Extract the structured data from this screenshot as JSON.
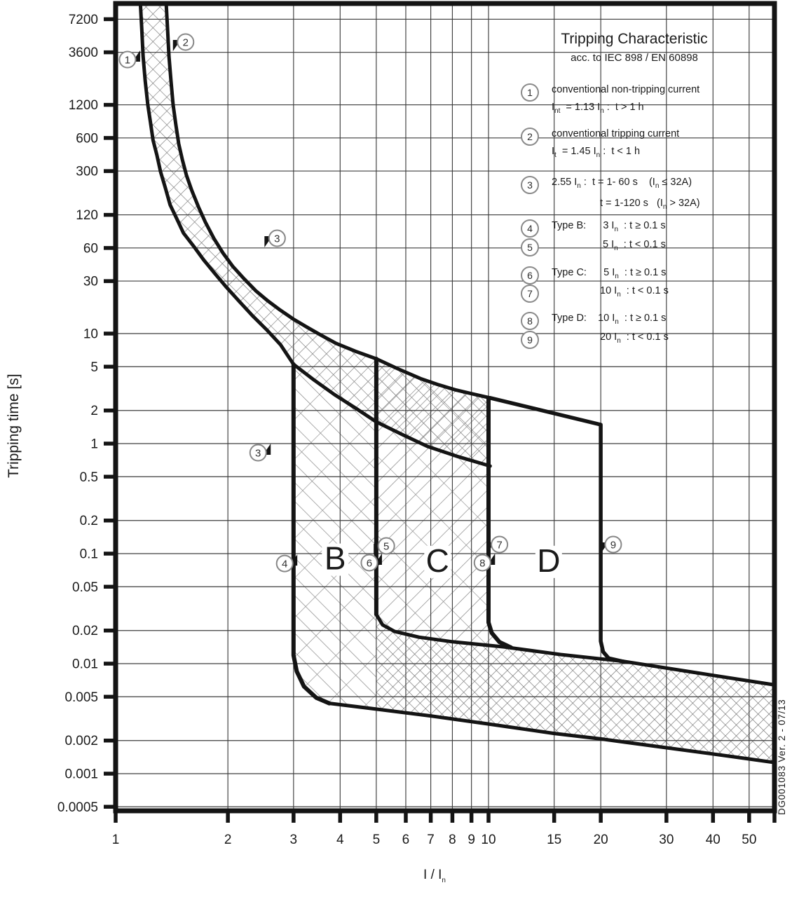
{
  "colors": {
    "ink": "#141414",
    "hatch_gray": "#878787",
    "grid": "#3d3d3d"
  },
  "doc_note": "DG001083 Ver. 2 - 07/13",
  "axes": {
    "x_title": "I / I~n~",
    "y_title": "Tripping time [s]",
    "x_ticks": [
      {
        "v": 1,
        "label": "1"
      },
      {
        "v": 2,
        "label": "2"
      },
      {
        "v": 3,
        "label": "3"
      },
      {
        "v": 4,
        "label": "4"
      },
      {
        "v": 5,
        "label": "5"
      },
      {
        "v": 6,
        "label": "6"
      },
      {
        "v": 7,
        "label": "7"
      },
      {
        "v": 8,
        "label": "8"
      },
      {
        "v": 9,
        "label": "9"
      },
      {
        "v": 10,
        "label": "10"
      },
      {
        "v": 15,
        "label": "15"
      },
      {
        "v": 20,
        "label": "20"
      },
      {
        "v": 30,
        "label": "30"
      },
      {
        "v": 40,
        "label": "40"
      },
      {
        "v": 50,
        "label": "50"
      }
    ],
    "y_ticks": [
      {
        "v": 7200,
        "label": "7200"
      },
      {
        "v": 3600,
        "label": "3600"
      },
      {
        "v": 1200,
        "label": "1200"
      },
      {
        "v": 600,
        "label": "600"
      },
      {
        "v": 300,
        "label": "300"
      },
      {
        "v": 120,
        "label": "120"
      },
      {
        "v": 60,
        "label": "60"
      },
      {
        "v": 30,
        "label": "30"
      },
      {
        "v": 10,
        "label": "10"
      },
      {
        "v": 5,
        "label": "5"
      },
      {
        "v": 2,
        "label": "2"
      },
      {
        "v": 1,
        "label": "1"
      },
      {
        "v": 0.5,
        "label": "0.5"
      },
      {
        "v": 0.2,
        "label": "0.2"
      },
      {
        "v": 0.1,
        "label": "0.1"
      },
      {
        "v": 0.05,
        "label": "0.05"
      },
      {
        "v": 0.02,
        "label": "0.02"
      },
      {
        "v": 0.01,
        "label": "0.01"
      },
      {
        "v": 0.005,
        "label": "0.005"
      },
      {
        "v": 0.002,
        "label": "0.002"
      },
      {
        "v": 0.001,
        "label": "0.001"
      },
      {
        "v": 0.0005,
        "label": "0.0005"
      }
    ]
  },
  "legend": {
    "title": "Tripping Characteristic",
    "subtitle": "acc. to IEC 898 / EN 60898",
    "lines": [
      {
        "num": "1",
        "text": "conventional non-tripping current"
      },
      {
        "text": "I~nt~  = 1.13 I~n~ :  t > 1 h"
      },
      {
        "num": "2",
        "text": "conventional tripping current"
      },
      {
        "text": "I~t~  = 1.45 I~n~ :  t < 1 h"
      },
      {
        "num": "3",
        "text": "2.55 I~n~ :  t = 1- 60 s    (I~n~ ≤ 32A)"
      },
      {
        "col2": true,
        "text": "t = 1-120 s   (I~n~ > 32A)"
      },
      {
        "num": "4",
        "text": "Type B:      3 I~n~  : t ≥ 0.1 s"
      },
      {
        "num": "5",
        "col2": true,
        "text": " 5 I~n~  : t < 0.1 s"
      },
      {
        "num": "6",
        "text": "Type C:      5 I~n~  : t ≥ 0.1 s"
      },
      {
        "num": "7",
        "col2": true,
        "text": "10 I~n~  : t < 0.1 s"
      },
      {
        "num": "8",
        "text": "Type D:    10 I~n~  : t ≥ 0.1 s"
      },
      {
        "num": "9",
        "col2": true,
        "text": "20 I~n~  : t < 0.1 s"
      }
    ]
  },
  "chart_data": {
    "type": "line",
    "title": "Tripping Characteristic",
    "subtitle": "acc. to IEC 898 / EN 60898",
    "xlabel": "I / In",
    "ylabel": "Tripping time [s]",
    "x_scale": "log",
    "y_scale": "log",
    "xlim": [
      1,
      58.6
    ],
    "ylim": [
      0.00046,
      10000
    ],
    "grid": true,
    "series": [
      {
        "id": "thermal_non_tripping_limit",
        "name": "conventional non-tripping limit (1.13 In)",
        "points": [
          [
            1.165,
            10000
          ],
          [
            1.175,
            5800
          ],
          [
            1.185,
            3300
          ],
          [
            1.2,
            2000
          ],
          [
            1.22,
            1200
          ],
          [
            1.24,
            830
          ],
          [
            1.26,
            570
          ],
          [
            1.29,
            420
          ],
          [
            1.32,
            295
          ],
          [
            1.36,
            210
          ],
          [
            1.4,
            148
          ],
          [
            1.46,
            110
          ],
          [
            1.52,
            82
          ],
          [
            1.62,
            62
          ],
          [
            1.72,
            47
          ],
          [
            1.84,
            35.5
          ],
          [
            1.97,
            27
          ],
          [
            2.14,
            19.8
          ],
          [
            2.33,
            14.5
          ],
          [
            2.55,
            10.7
          ],
          [
            2.77,
            7.9
          ],
          [
            3.0,
            5.25
          ],
          [
            3.4,
            3.8
          ],
          [
            3.86,
            2.79
          ],
          [
            4.4,
            2.1
          ],
          [
            5.0,
            1.576
          ],
          [
            5.9,
            1.2
          ],
          [
            6.86,
            0.943
          ],
          [
            8.3,
            0.76
          ],
          [
            10.1,
            0.625
          ]
        ]
      },
      {
        "id": "thermal_tripping_limit",
        "name": "conventional tripping limit (1.45 In)",
        "points": [
          [
            1.366,
            10000
          ],
          [
            1.378,
            5800
          ],
          [
            1.39,
            3300
          ],
          [
            1.407,
            2000
          ],
          [
            1.426,
            1200
          ],
          [
            1.45,
            800
          ],
          [
            1.476,
            530
          ],
          [
            1.51,
            380
          ],
          [
            1.548,
            275
          ],
          [
            1.6,
            200
          ],
          [
            1.667,
            142
          ],
          [
            1.74,
            103
          ],
          [
            1.833,
            73.6
          ],
          [
            1.94,
            54
          ],
          [
            2.06,
            40.9
          ],
          [
            2.21,
            31.5
          ],
          [
            2.375,
            24.5
          ],
          [
            2.56,
            19.8
          ],
          [
            2.766,
            16.3
          ],
          [
            3.0,
            13.5
          ],
          [
            3.28,
            11.3
          ],
          [
            3.57,
            9.6
          ],
          [
            3.9,
            8.15
          ],
          [
            4.4,
            6.9
          ],
          [
            5.0,
            5.9
          ],
          [
            5.7,
            4.8
          ],
          [
            6.57,
            3.9
          ],
          [
            7.3,
            3.45
          ],
          [
            8.15,
            3.08
          ],
          [
            9.1,
            2.82
          ],
          [
            10.1,
            2.6
          ]
        ]
      },
      {
        "id": "type_b_min",
        "name": "Type B magnetic threshold (3 In)",
        "points": [
          [
            3,
            5.25
          ],
          [
            3,
            0.0119
          ],
          [
            3.06,
            0.0085
          ],
          [
            3.2,
            0.0062
          ],
          [
            3.45,
            0.0049
          ],
          [
            3.74,
            0.00436
          ]
        ]
      },
      {
        "id": "type_c_min",
        "name": "Type C magnetic threshold (5 In)",
        "points": [
          [
            5,
            5.9
          ],
          [
            5,
            0.028
          ]
        ]
      },
      {
        "id": "cd_boundary",
        "name": "Type C max / Type D min (10 In)",
        "points": [
          [
            10,
            2.6
          ],
          [
            10,
            0.0237
          ],
          [
            10.2,
            0.019
          ],
          [
            10.7,
            0.0157
          ],
          [
            11.5,
            0.014
          ]
        ]
      },
      {
        "id": "type_d_boundary",
        "name": "Type D boundary (20 In)",
        "points": [
          [
            10.1,
            2.6
          ],
          [
            20,
            1.486
          ],
          [
            20,
            0.016
          ],
          [
            20.3,
            0.0128
          ],
          [
            21,
            0.0112
          ],
          [
            23.1,
            0.0104
          ]
        ]
      },
      {
        "id": "magnetic_band_top",
        "name": "instantaneous trip band upper limit",
        "points": [
          [
            5,
            0.028
          ],
          [
            5.2,
            0.0225
          ],
          [
            5.6,
            0.0196
          ],
          [
            6.5,
            0.0174
          ],
          [
            8,
            0.0158
          ],
          [
            11,
            0.0142
          ],
          [
            15.6,
            0.0121
          ],
          [
            23,
            0.0105
          ],
          [
            35,
            0.0084
          ],
          [
            58.6,
            0.0064
          ]
        ]
      },
      {
        "id": "magnetic_band_bottom",
        "name": "instantaneous trip band lower limit",
        "points": [
          [
            3.74,
            0.00436
          ],
          [
            5,
            0.00386
          ],
          [
            7,
            0.00335
          ],
          [
            10,
            0.00283
          ],
          [
            15,
            0.00232
          ],
          [
            20,
            0.00207
          ],
          [
            30,
            0.00172
          ],
          [
            45,
            0.00143
          ],
          [
            58.6,
            0.00126
          ]
        ]
      }
    ],
    "regions": [
      {
        "name": "thermal_band",
        "hatch": "cross-wide",
        "points": [
          [
            1.165,
            10000
          ],
          [
            1.175,
            5800
          ],
          [
            1.185,
            3300
          ],
          [
            1.2,
            2000
          ],
          [
            1.22,
            1200
          ],
          [
            1.24,
            830
          ],
          [
            1.26,
            570
          ],
          [
            1.29,
            420
          ],
          [
            1.32,
            295
          ],
          [
            1.36,
            210
          ],
          [
            1.4,
            148
          ],
          [
            1.46,
            110
          ],
          [
            1.52,
            82
          ],
          [
            1.62,
            62
          ],
          [
            1.72,
            47
          ],
          [
            1.84,
            35.5
          ],
          [
            1.97,
            27
          ],
          [
            2.14,
            19.8
          ],
          [
            2.33,
            14.5
          ],
          [
            2.55,
            10.7
          ],
          [
            2.77,
            7.9
          ],
          [
            3.0,
            5.25
          ],
          [
            3.4,
            3.8
          ],
          [
            3.86,
            2.79
          ],
          [
            4.4,
            2.1
          ],
          [
            5.0,
            1.576
          ],
          [
            5.9,
            1.2
          ],
          [
            6.86,
            0.943
          ],
          [
            8.3,
            0.76
          ],
          [
            10.1,
            0.625
          ],
          [
            10.1,
            2.6
          ],
          [
            9.1,
            2.82
          ],
          [
            8.15,
            3.08
          ],
          [
            7.3,
            3.45
          ],
          [
            6.57,
            3.9
          ],
          [
            5.7,
            4.8
          ],
          [
            5.0,
            5.9
          ],
          [
            4.4,
            6.9
          ],
          [
            3.9,
            8.15
          ],
          [
            3.57,
            9.6
          ],
          [
            3.28,
            11.3
          ],
          [
            3.0,
            13.5
          ],
          [
            2.766,
            16.3
          ],
          [
            2.56,
            19.8
          ],
          [
            2.375,
            24.5
          ],
          [
            2.21,
            31.5
          ],
          [
            2.06,
            40.9
          ],
          [
            1.94,
            54
          ],
          [
            1.833,
            73.6
          ],
          [
            1.74,
            103
          ],
          [
            1.667,
            142
          ],
          [
            1.6,
            200
          ],
          [
            1.548,
            275
          ],
          [
            1.51,
            380
          ],
          [
            1.476,
            530
          ],
          [
            1.45,
            800
          ],
          [
            1.426,
            1200
          ],
          [
            1.407,
            2000
          ],
          [
            1.39,
            3300
          ],
          [
            1.378,
            5800
          ],
          [
            1.366,
            10000
          ]
        ]
      },
      {
        "name": "type_b",
        "hatch": "fwd-mixed",
        "points": [
          [
            3,
            5.25
          ],
          [
            3.4,
            3.8
          ],
          [
            3.86,
            2.79
          ],
          [
            4.4,
            2.1
          ],
          [
            5,
            1.576
          ],
          [
            5,
            0.00386
          ],
          [
            3.74,
            0.00436
          ],
          [
            3.45,
            0.0049
          ],
          [
            3.2,
            0.0062
          ],
          [
            3.06,
            0.0085
          ],
          [
            3,
            0.0119
          ]
        ]
      },
      {
        "name": "type_c",
        "hatch": "back-mixed",
        "points": [
          [
            5,
            5.9
          ],
          [
            5.7,
            4.8
          ],
          [
            6.57,
            3.9
          ],
          [
            7.3,
            3.45
          ],
          [
            8.15,
            3.08
          ],
          [
            9.1,
            2.82
          ],
          [
            10.1,
            2.6
          ],
          [
            10,
            0.0237
          ],
          [
            10.2,
            0.019
          ],
          [
            10.7,
            0.0157
          ],
          [
            11.5,
            0.014
          ],
          [
            11,
            0.0142
          ],
          [
            8,
            0.0158
          ],
          [
            6.5,
            0.0174
          ],
          [
            5.6,
            0.0196
          ],
          [
            5.2,
            0.0225
          ],
          [
            5,
            0.028
          ]
        ]
      },
      {
        "name": "magnetic_band",
        "hatch": "cross-dense",
        "points": [
          [
            5,
            0.028
          ],
          [
            5.2,
            0.0225
          ],
          [
            5.6,
            0.0196
          ],
          [
            6.5,
            0.0174
          ],
          [
            8,
            0.0158
          ],
          [
            11,
            0.0142
          ],
          [
            15.6,
            0.0121
          ],
          [
            23,
            0.0105
          ],
          [
            35,
            0.0084
          ],
          [
            58.6,
            0.0064
          ],
          [
            58.6,
            0.00126
          ],
          [
            45,
            0.00143
          ],
          [
            30,
            0.00172
          ],
          [
            20,
            0.00207
          ],
          [
            15,
            0.00232
          ],
          [
            10,
            0.00283
          ],
          [
            7,
            0.00335
          ],
          [
            5,
            0.00386
          ]
        ]
      }
    ],
    "annotations": {
      "markers": [
        {
          "n": "1",
          "v": 1.076,
          "t": 3091,
          "dir": "ne"
        },
        {
          "n": "2",
          "v": 1.54,
          "t": 4466,
          "dir": "sw"
        },
        {
          "n": "3",
          "v": 2.71,
          "t": 73.5,
          "dir": "sw"
        },
        {
          "n": "3",
          "v": 2.41,
          "t": 0.826,
          "dir": "ne"
        },
        {
          "n": "4",
          "v": 2.84,
          "t": 0.0813,
          "dir": "ne"
        },
        {
          "n": "5",
          "v": 5.32,
          "t": 0.1175,
          "dir": "sw"
        },
        {
          "n": "6",
          "v": 4.79,
          "t": 0.0827,
          "dir": "ne"
        },
        {
          "n": "7",
          "v": 10.7,
          "t": 0.121,
          "dir": "sw"
        },
        {
          "n": "8",
          "v": 9.63,
          "t": 0.0827,
          "dir": "ne"
        },
        {
          "n": "9",
          "v": 21.6,
          "t": 0.121,
          "dir": "sw"
        }
      ],
      "region_labels": [
        {
          "text": "B",
          "v": 3.88,
          "t": 0.0718
        },
        {
          "text": "C",
          "v": 7.3,
          "t": 0.0685
        },
        {
          "text": "D",
          "v": 14.5,
          "t": 0.0685
        }
      ]
    }
  }
}
